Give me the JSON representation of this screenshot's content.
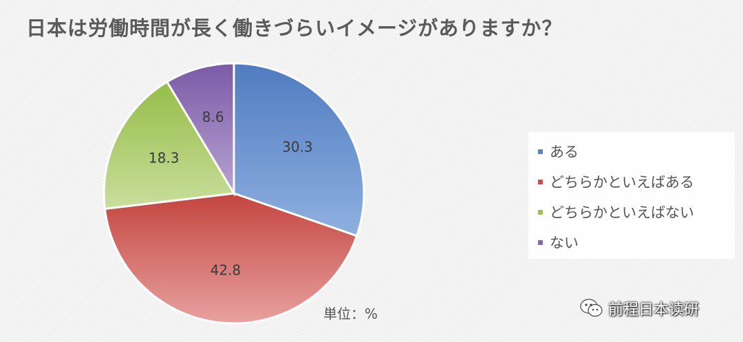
{
  "chart_data": {
    "type": "pie",
    "title": "日本は労働時間が長く働きづらいイメージがありますか？",
    "categories": [
      "ある",
      "どちらかといえばある",
      "どちらかといえばない",
      "ない"
    ],
    "values": [
      30.3,
      42.8,
      18.3,
      8.6
    ],
    "data_labels": [
      "30.3",
      "42.8",
      "18.3",
      "8.6"
    ],
    "colors": [
      "#5b86c4",
      "#c9504c",
      "#9cc054",
      "#8468ab"
    ],
    "unit_label": "単位：%",
    "legend_position": "right"
  },
  "watermark": {
    "text": "前程日本读研",
    "icon": "wechat-icon"
  }
}
